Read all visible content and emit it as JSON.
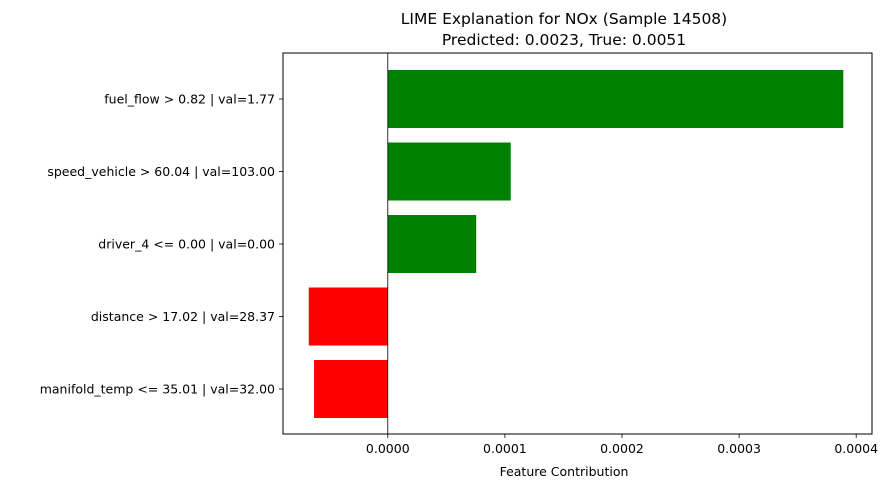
{
  "chart_data": {
    "type": "bar",
    "orientation": "horizontal",
    "title": "LIME Explanation for NOx (Sample 14508)",
    "subtitle": "Predicted: 0.0023, True: 0.0051",
    "xlabel": "Feature Contribution",
    "ylabel": "",
    "xlim": [
      -8.95e-05,
      0.0004135
    ],
    "xticks": [
      0.0,
      0.0001,
      0.0002,
      0.0003,
      0.0004
    ],
    "xtick_labels": [
      "0.0000",
      "0.0001",
      "0.0002",
      "0.0003",
      "0.0004"
    ],
    "zero_line": true,
    "grid": false,
    "legend": "none",
    "categories": [
      "fuel_flow > 0.82 | val=1.77",
      "speed_vehicle > 60.04 | val=103.00",
      "driver_4 <= 0.00 | val=0.00",
      "distance > 17.02 | val=28.37",
      "manifold_temp <= 35.01 | val=32.00"
    ],
    "values": [
      0.000389,
      0.000105,
      7.55e-05,
      -6.75e-05,
      -6.3e-05
    ],
    "colors": {
      "positive": "#008000",
      "negative": "#ff0000"
    }
  }
}
